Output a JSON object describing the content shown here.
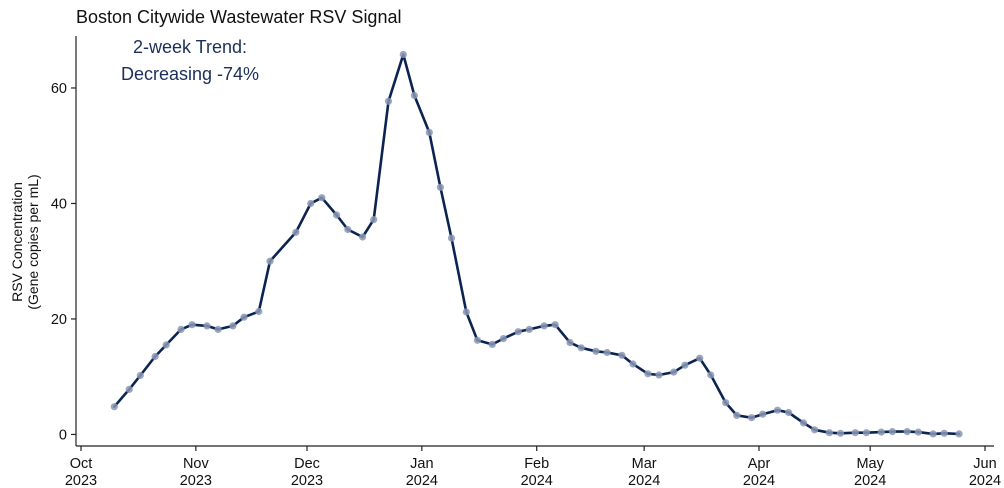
{
  "chart_data": {
    "type": "line",
    "title": "Boston Citywide Wastewater RSV Signal",
    "annotation": [
      "2-week Trend:",
      "Decreasing -74%"
    ],
    "ylabel": [
      "RSV Concentration",
      "(Gene copies per mL)"
    ],
    "xlabel": "",
    "ylim": [
      -2,
      69
    ],
    "y_ticks": [
      0,
      20,
      40,
      60
    ],
    "x_ticks": [
      {
        "date": "2023-10-01",
        "label1": "Oct",
        "label2": "2023"
      },
      {
        "date": "2023-11-01",
        "label1": "Nov",
        "label2": "2023"
      },
      {
        "date": "2023-12-01",
        "label1": "Dec",
        "label2": "2023"
      },
      {
        "date": "2024-01-01",
        "label1": "Jan",
        "label2": "2024"
      },
      {
        "date": "2024-02-01",
        "label1": "Feb",
        "label2": "2024"
      },
      {
        "date": "2024-03-01",
        "label1": "Mar",
        "label2": "2024"
      },
      {
        "date": "2024-04-01",
        "label1": "Apr",
        "label2": "2024"
      },
      {
        "date": "2024-05-01",
        "label1": "May",
        "label2": "2024"
      },
      {
        "date": "2024-06-01",
        "label1": "Jun",
        "label2": "2024"
      }
    ],
    "grid": false,
    "colors": {
      "line": "#0b2351",
      "points": "#8a96b4",
      "annotation": "#1b2f5a"
    },
    "series": [
      {
        "x": [
          "2023-10-10",
          "2023-10-14",
          "2023-10-17",
          "2023-10-21",
          "2023-10-24",
          "2023-10-28",
          "2023-10-31",
          "2023-11-04",
          "2023-11-07",
          "2023-11-11",
          "2023-11-14",
          "2023-11-18",
          "2023-11-21",
          "2023-11-28",
          "2023-12-02",
          "2023-12-05",
          "2023-12-09",
          "2023-12-12",
          "2023-12-16",
          "2023-12-19",
          "2023-12-23",
          "2023-12-27",
          "2023-12-30",
          "2024-01-03",
          "2024-01-06",
          "2024-01-09",
          "2024-01-13",
          "2024-01-16",
          "2024-01-20",
          "2024-01-23",
          "2024-01-27",
          "2024-01-30",
          "2024-02-03",
          "2024-02-06",
          "2024-02-10",
          "2024-02-13",
          "2024-02-17",
          "2024-02-20",
          "2024-02-24",
          "2024-02-27",
          "2024-03-02",
          "2024-03-05",
          "2024-03-09",
          "2024-03-12",
          "2024-03-16",
          "2024-03-19",
          "2024-03-23",
          "2024-03-26",
          "2024-03-30",
          "2024-04-02",
          "2024-04-06",
          "2024-04-09",
          "2024-04-13",
          "2024-04-16",
          "2024-04-20",
          "2024-04-23",
          "2024-04-27",
          "2024-04-30",
          "2024-05-04",
          "2024-05-07",
          "2024-05-11",
          "2024-05-14",
          "2024-05-18",
          "2024-05-21",
          "2024-05-25"
        ],
        "y": [
          4.8,
          7.8,
          10.2,
          13.5,
          15.5,
          18.2,
          19.0,
          18.8,
          18.2,
          18.8,
          20.3,
          21.3,
          30.0,
          35.0,
          40.0,
          41.0,
          38.0,
          35.5,
          34.2,
          37.2,
          57.7,
          65.8,
          58.7,
          52.3,
          42.8,
          34.0,
          21.2,
          16.3,
          15.6,
          16.6,
          17.8,
          18.2,
          18.8,
          19.0,
          15.9,
          15.0,
          14.4,
          14.2,
          13.7,
          12.2,
          10.5,
          10.3,
          10.8,
          12.0,
          13.2,
          10.3,
          5.5,
          3.3,
          2.9,
          3.5,
          4.2,
          3.8,
          2.0,
          0.8,
          0.3,
          0.2,
          0.3,
          0.3,
          0.4,
          0.5,
          0.5,
          0.4,
          0.1,
          0.2,
          0.1
        ]
      }
    ]
  }
}
